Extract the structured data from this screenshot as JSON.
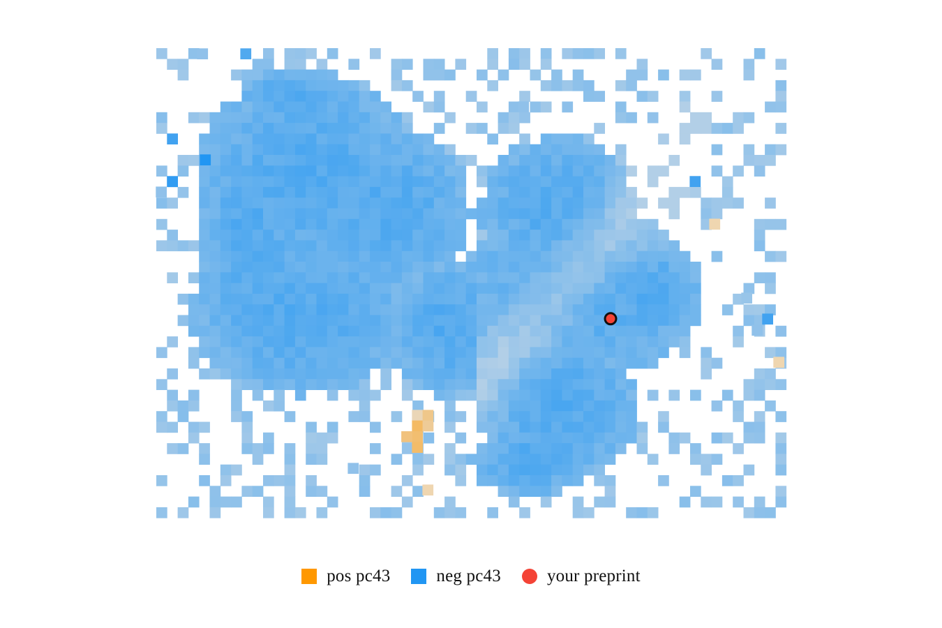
{
  "chart_data": {
    "type": "heatmap",
    "title": "",
    "xlabel": "",
    "ylabel": "",
    "grid": false,
    "legend_position": "bottom-center",
    "colors": {
      "positive": "#ff9800",
      "negative": "#2196f3",
      "neutral": "#bfd4e6",
      "preprint": "#f44336",
      "preprint_outline": "#111111"
    },
    "density_description": "2D binned embedding of preprints colored by sign of principal component 43; nearly all bins lean negative (blue), a small cluster leans positive (orange).",
    "positive_cluster_bins": [
      {
        "x": 0.0,
        "y": 0.0,
        "value": 0.25
      },
      {
        "x": 1.0,
        "y": 0.0,
        "value": 0.6
      },
      {
        "x": 0.0,
        "y": 1.0,
        "value": 0.9
      },
      {
        "x": 1.0,
        "y": 1.0,
        "value": 0.5
      },
      {
        "x": 0.0,
        "y": 2.0,
        "value": 0.8
      },
      {
        "x": -1.0,
        "y": 2.0,
        "value": 0.7
      },
      {
        "x": 0.0,
        "y": 3.0,
        "value": 0.85
      }
    ],
    "preprint": {
      "label": "your preprint",
      "x": 0.62,
      "y": 0.47
    }
  },
  "legend": {
    "items": [
      {
        "label": "pos pc43",
        "color": "#ff9800",
        "shape": "square"
      },
      {
        "label": "neg pc43",
        "color": "#2196f3",
        "shape": "square"
      },
      {
        "label": "your preprint",
        "color": "#f44336",
        "shape": "circle"
      }
    ]
  }
}
